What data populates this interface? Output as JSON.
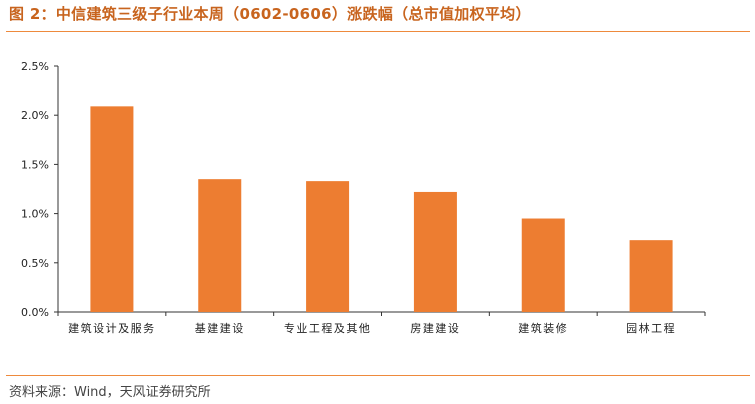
{
  "header": {
    "title": "图 2：中信建筑三级子行业本周（0602-0606）涨跌幅（总市值加权平均）"
  },
  "footer": {
    "source": "资料来源：Wind，天风证券研究所"
  },
  "colors": {
    "bar": "#ed7d31",
    "title": "#c8641e",
    "rule": "#ee8a3d"
  },
  "chart_data": {
    "type": "bar",
    "categories": [
      "建筑设计及服务",
      "基建建设",
      "专业工程及其他",
      "房建建设",
      "建筑装修",
      "园林工程"
    ],
    "values": [
      2.09,
      1.35,
      1.33,
      1.22,
      0.95,
      0.73
    ],
    "y_ticks": [
      "0.0%",
      "0.5%",
      "1.0%",
      "1.5%",
      "2.0%",
      "2.5%"
    ],
    "ylim": [
      0,
      2.5
    ],
    "unit": "%",
    "grid": false,
    "legend": "none"
  }
}
